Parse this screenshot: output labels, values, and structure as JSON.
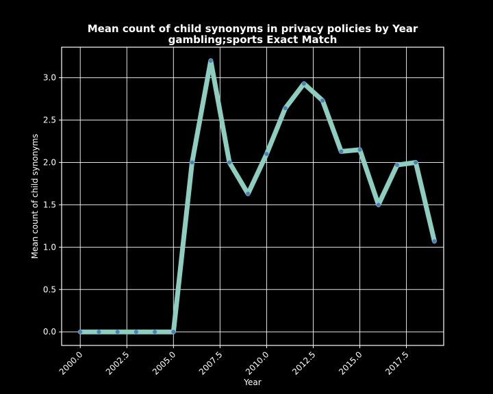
{
  "chart_data": {
    "type": "line",
    "title": "Mean count of child synonyms in privacy policies by Year",
    "subtitle": "gambling;sports Exact Match",
    "xlabel": "Year",
    "ylabel": "Mean count of child synonyms",
    "xlim": [
      1999.0,
      2019.5
    ],
    "ylim": [
      -0.16,
      3.36
    ],
    "x_ticks": [
      "2000.0",
      "2002.5",
      "2005.0",
      "2007.5",
      "2010.0",
      "2012.5",
      "2015.0",
      "2017.5"
    ],
    "y_ticks": [
      "0.0",
      "0.5",
      "1.0",
      "1.5",
      "2.0",
      "2.5",
      "3.0"
    ],
    "grid": true,
    "line_color": "#8ccfc0",
    "marker_color": "#4a7fb8",
    "x": [
      2000,
      2001,
      2002,
      2003,
      2004,
      2005,
      2006,
      2007,
      2008,
      2009,
      2010,
      2011,
      2012,
      2013,
      2014,
      2015,
      2016,
      2017,
      2018,
      2019
    ],
    "y": [
      0.0,
      0.0,
      0.0,
      0.0,
      0.0,
      0.0,
      2.0,
      3.2,
      2.0,
      1.63,
      2.1,
      2.64,
      2.93,
      2.73,
      2.13,
      2.15,
      1.5,
      1.97,
      2.0,
      1.07
    ]
  }
}
